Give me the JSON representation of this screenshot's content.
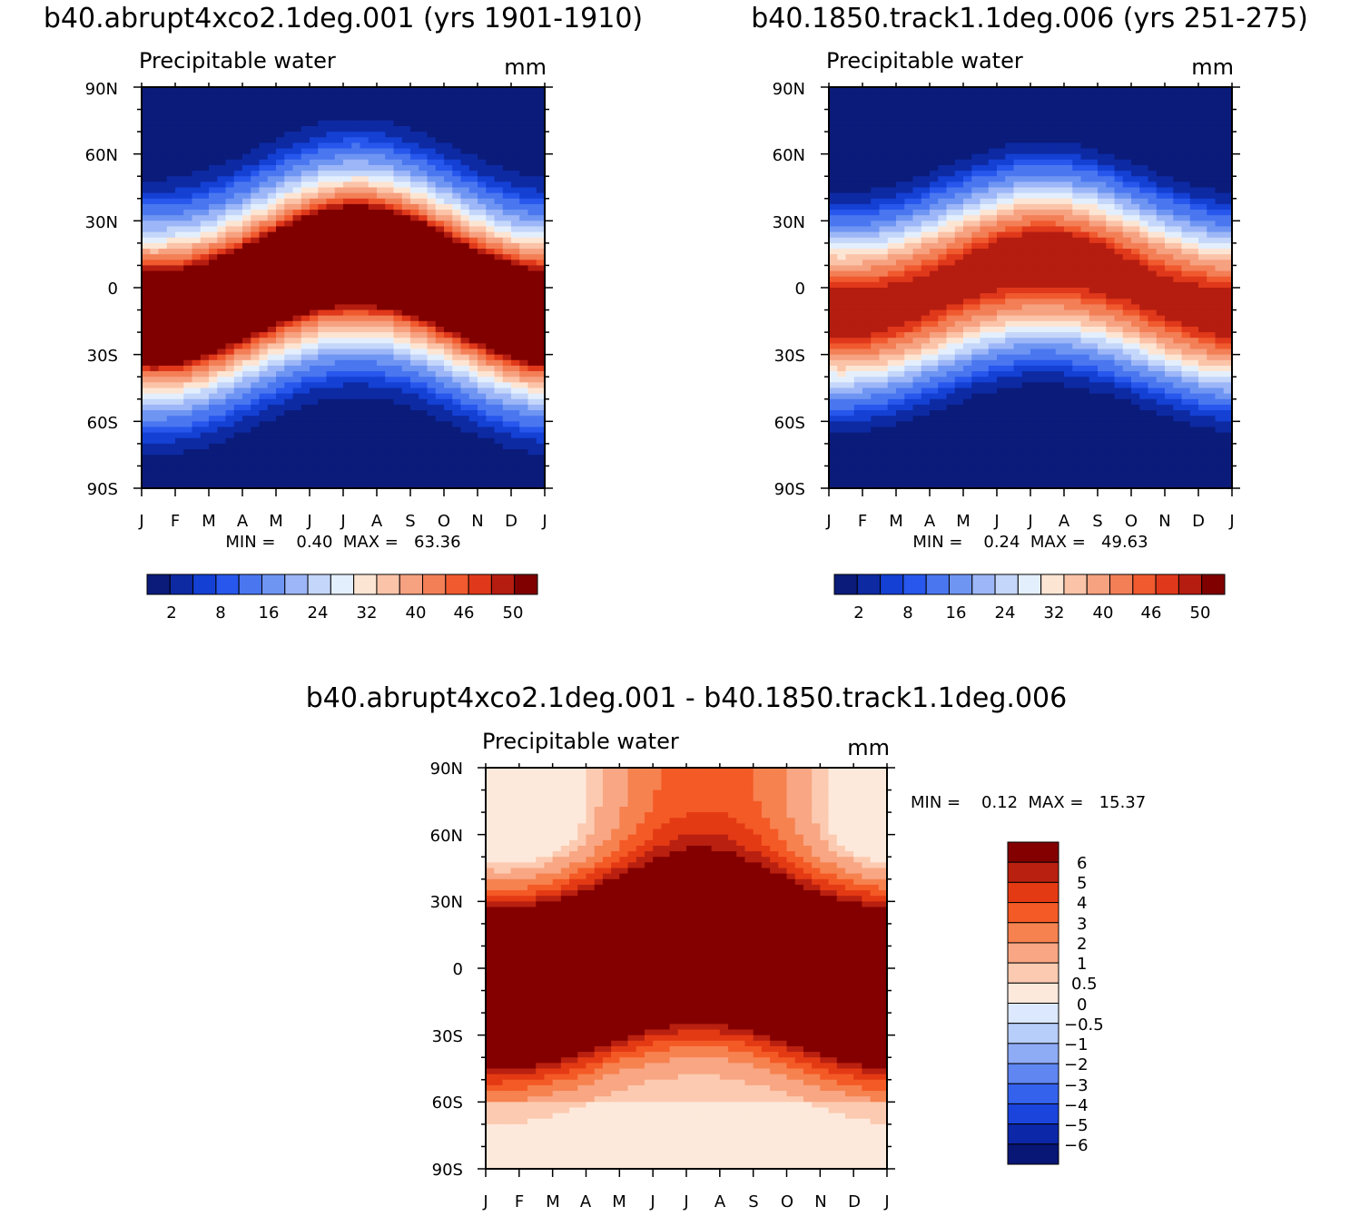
{
  "chart_data": [
    {
      "type": "heatmap",
      "title": "b40.abrupt4xco2.1deg.001 (yrs 1901-1910)",
      "subtitle": "Precipitable water",
      "units": "mm",
      "x_ticks": [
        "J",
        "F",
        "M",
        "A",
        "M",
        "J",
        "J",
        "A",
        "S",
        "O",
        "N",
        "D",
        "J"
      ],
      "y_ticks": [
        "90N",
        "60N",
        "30N",
        "0",
        "30S",
        "60S",
        "90S"
      ],
      "y_range": [
        -90,
        90
      ],
      "stats_text": "MIN =    0.40  MAX =   63.36",
      "min": 0.4,
      "max": 63.36,
      "levels": [
        2,
        4,
        6,
        8,
        12,
        16,
        20,
        24,
        28,
        32,
        36,
        40,
        44,
        46,
        48,
        50
      ],
      "colorbar_labels": [
        "2",
        "8",
        "16",
        "24",
        "32",
        "40",
        "46",
        "50"
      ],
      "field": {
        "peak": 63.36,
        "floor": 0.4,
        "width": 37,
        "power": 1.25,
        "itcz_amp": 12
      }
    },
    {
      "type": "heatmap",
      "title": "b40.1850.track1.1deg.006 (yrs 251-275)",
      "subtitle": "Precipitable water",
      "units": "mm",
      "x_ticks": [
        "J",
        "F",
        "M",
        "A",
        "M",
        "J",
        "J",
        "A",
        "S",
        "O",
        "N",
        "D",
        "J"
      ],
      "y_ticks": [
        "90N",
        "60N",
        "30N",
        "0",
        "30S",
        "60S",
        "90S"
      ],
      "y_range": [
        -90,
        90
      ],
      "stats_text": "MIN =    0.24  MAX =   49.63",
      "min": 0.24,
      "max": 49.63,
      "levels": [
        2,
        4,
        6,
        8,
        12,
        16,
        20,
        24,
        28,
        32,
        36,
        40,
        44,
        46,
        48,
        50
      ],
      "colorbar_labels": [
        "2",
        "8",
        "16",
        "24",
        "32",
        "40",
        "46",
        "50"
      ],
      "field": {
        "peak": 49.63,
        "floor": 0.24,
        "width": 34,
        "power": 1.3,
        "itcz_amp": 10
      }
    },
    {
      "type": "heatmap",
      "title": "b40.abrupt4xco2.1deg.001 - b40.1850.track1.1deg.006",
      "subtitle": "Precipitable water",
      "units": "mm",
      "x_ticks": [
        "J",
        "F",
        "M",
        "A",
        "M",
        "J",
        "J",
        "A",
        "S",
        "O",
        "N",
        "D",
        "J"
      ],
      "y_ticks": [
        "90N",
        "60N",
        "30N",
        "0",
        "30S",
        "60S",
        "90S"
      ],
      "y_range": [
        -90,
        90
      ],
      "stats_text": "MIN =    0.12  MAX =   15.37",
      "min": 0.12,
      "max": 15.37,
      "levels": [
        -6,
        -5,
        -4,
        -3,
        -2,
        -1,
        -0.5,
        0,
        0.5,
        1,
        2,
        3,
        4,
        5,
        6
      ],
      "colorbar_labels": [
        "6",
        "5",
        "4",
        "3",
        "2",
        "1",
        "0.5",
        "0",
        "−0.5",
        "−1",
        "−2",
        "−3",
        "−4",
        "−5",
        "−6"
      ]
    }
  ],
  "palettes": {
    "abs": [
      "#0a1b7a",
      "#0d2aa3",
      "#1440d4",
      "#2757ec",
      "#4a77f0",
      "#6f95f3",
      "#9cb6f7",
      "#c4d6fa",
      "#e4effd",
      "#fde5d3",
      "#fbc3a8",
      "#f6a180",
      "#f37f57",
      "#f05a2e",
      "#e0381a",
      "#b51d10",
      "#800000"
    ],
    "diff": [
      "#081675",
      "#0c27a8",
      "#1a44db",
      "#3462ec",
      "#5f86f1",
      "#8eabf6",
      "#b7cdfa",
      "#dbe8fd",
      "#fde9db",
      "#fccab0",
      "#f8a683",
      "#f68250",
      "#f45a25",
      "#e43a14",
      "#b92010",
      "#840000"
    ]
  }
}
